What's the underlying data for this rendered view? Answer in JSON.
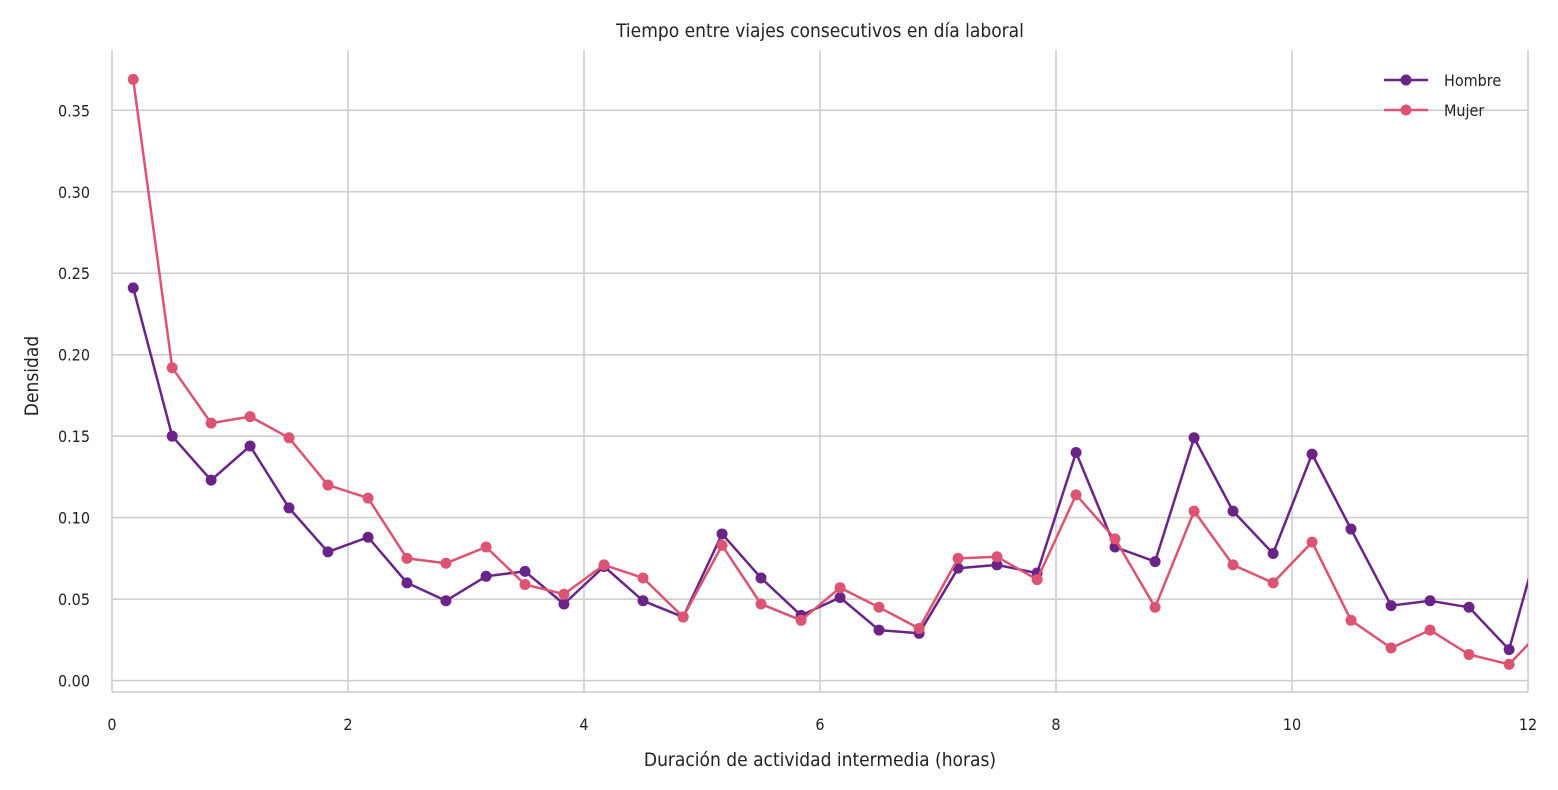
{
  "chart_data": {
    "type": "line",
    "title": "Tiempo entre viajes consecutivos en día laboral",
    "xlabel": "Duración de actividad intermedia (horas)",
    "ylabel": "Densidad",
    "xlim": [
      0,
      12
    ],
    "ylim": [
      -0.007,
      0.387
    ],
    "xticks": [
      0,
      2,
      4,
      6,
      8,
      10,
      12
    ],
    "xtick_labels": [
      "0",
      "2",
      "4",
      "6",
      "8",
      "10",
      "12"
    ],
    "yticks": [
      0.0,
      0.05,
      0.1,
      0.15,
      0.2,
      0.25,
      0.3,
      0.35
    ],
    "ytick_labels": [
      "0.00",
      "0.05",
      "0.10",
      "0.15",
      "0.20",
      "0.25",
      "0.30",
      "0.35"
    ],
    "grid": true,
    "legend_position": "top-right",
    "x": [
      0.18,
      0.51,
      0.84,
      1.17,
      1.5,
      1.83,
      2.17,
      2.5,
      2.83,
      3.17,
      3.5,
      3.83,
      4.17,
      4.5,
      4.84,
      5.17,
      5.5,
      5.84,
      6.17,
      6.5,
      6.84,
      7.17,
      7.5,
      7.84,
      8.17,
      8.5,
      8.84,
      9.17,
      9.5,
      9.84,
      10.17,
      10.5,
      10.84,
      11.17,
      11.5,
      11.84,
      12.17
    ],
    "series": [
      {
        "name": "Hombre",
        "color": "#6a2488",
        "values": [
          0.241,
          0.15,
          0.123,
          0.144,
          0.106,
          0.079,
          0.088,
          0.06,
          0.049,
          0.064,
          0.067,
          0.047,
          0.07,
          0.049,
          0.039,
          0.09,
          0.063,
          0.04,
          0.051,
          0.031,
          0.029,
          0.069,
          0.071,
          0.066,
          0.14,
          0.082,
          0.073,
          0.149,
          0.104,
          0.078,
          0.139,
          0.093,
          0.046,
          0.049,
          0.045,
          0.019,
          0.105
        ]
      },
      {
        "name": "Mujer",
        "color": "#dc5472",
        "values": [
          0.369,
          0.192,
          0.158,
          0.162,
          0.149,
          0.12,
          0.112,
          0.075,
          0.072,
          0.082,
          0.059,
          0.053,
          0.071,
          0.063,
          0.039,
          0.083,
          0.047,
          0.037,
          0.057,
          0.045,
          0.032,
          0.075,
          0.076,
          0.062,
          0.114,
          0.087,
          0.045,
          0.104,
          0.071,
          0.06,
          0.085,
          0.037,
          0.02,
          0.031,
          0.016,
          0.01,
          0.035
        ]
      }
    ]
  }
}
